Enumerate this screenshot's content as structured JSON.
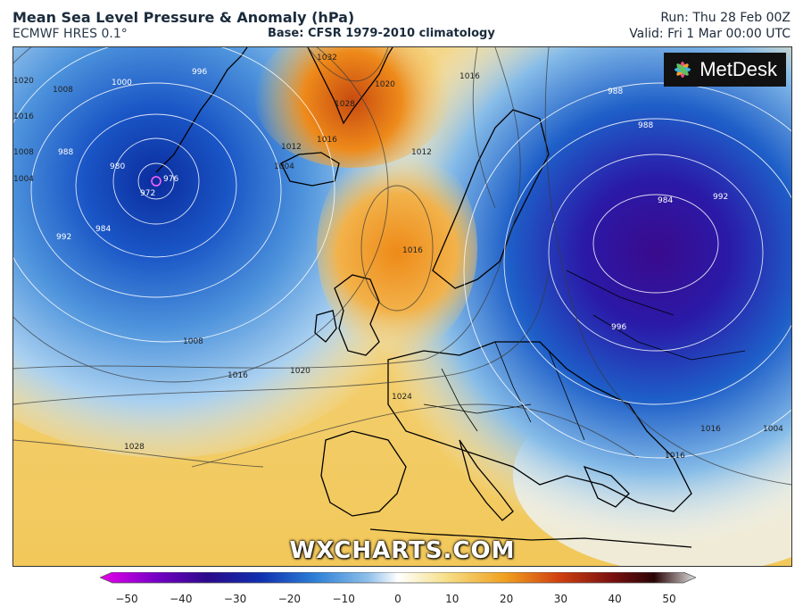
{
  "header": {
    "title": "Mean Sea Level Pressure & Anomaly (hPa)",
    "subtitle": "ECMWF HRES 0.1°",
    "base": "Base: CFSR 1979-2010 climatology",
    "run": "Run: Thu 28 Feb 00Z",
    "valid": "Valid: Fri 1 Mar 00:00 UTC"
  },
  "logo": {
    "text": "MetDesk",
    "icon": "metdesk-flower-icon"
  },
  "watermark": "WXCHARTS.COM",
  "colorbar": {
    "ticks": [
      "−50",
      "−40",
      "−30",
      "−20",
      "−10",
      "0",
      "10",
      "20",
      "30",
      "40",
      "50"
    ],
    "colors": [
      "#e800e8",
      "#7a00c8",
      "#2a0a8a",
      "#1030b0",
      "#2c7fd6",
      "#8fc0ea",
      "#ffffff",
      "#f6e08a",
      "#f0a020",
      "#d04010",
      "#7a1010",
      "#2a0505",
      "#e0e0e0"
    ]
  },
  "isobars": {
    "dark_labels": [
      "1032",
      "1028",
      "1020",
      "1008",
      "1004",
      "1012",
      "1016",
      "1016",
      "1012",
      "1016",
      "1008",
      "1016",
      "1020",
      "1024",
      "1028",
      "1020",
      "1016",
      "1008",
      "1004",
      "1016",
      "1016",
      "1004"
    ],
    "light_labels": [
      "1000",
      "996",
      "988",
      "980",
      "972",
      "976",
      "984",
      "992",
      "988",
      "988",
      "984",
      "992",
      "996"
    ]
  }
}
